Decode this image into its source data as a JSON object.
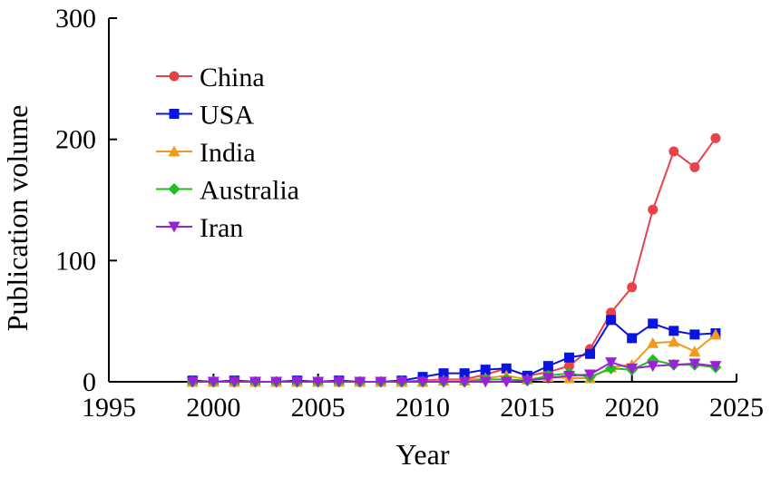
{
  "chart_data": {
    "type": "line",
    "xlabel": "Year",
    "ylabel": "Publication volume",
    "xlim": [
      1995,
      2025
    ],
    "ylim": [
      0,
      300
    ],
    "xticks": [
      1995,
      2000,
      2005,
      2010,
      2015,
      2020,
      2025
    ],
    "yticks": [
      0,
      100,
      200,
      300
    ],
    "grid": false,
    "legend_position": "upper-left",
    "x": [
      1999,
      2000,
      2001,
      2002,
      2003,
      2004,
      2005,
      2006,
      2007,
      2008,
      2009,
      2010,
      2011,
      2012,
      2013,
      2014,
      2015,
      2016,
      2017,
      2018,
      2019,
      2020,
      2021,
      2022,
      2023,
      2024
    ],
    "series": [
      {
        "name": "China",
        "color": "#e8424a",
        "marker": "circle",
        "values": [
          0,
          0,
          0,
          0,
          0,
          0,
          0,
          0,
          0,
          0,
          0,
          1,
          2,
          2,
          6,
          11,
          5,
          8,
          13,
          27,
          57,
          78,
          142,
          190,
          177,
          201
        ]
      },
      {
        "name": "USA",
        "color": "#0a14e0",
        "marker": "square",
        "values": [
          1,
          0,
          1,
          0,
          0,
          1,
          0,
          1,
          0,
          0,
          1,
          4,
          7,
          7,
          10,
          11,
          5,
          13,
          20,
          23,
          51,
          36,
          48,
          42,
          39,
          40
        ]
      },
      {
        "name": "India",
        "color": "#f39a1c",
        "marker": "triangle-up",
        "values": [
          0,
          0,
          0,
          0,
          0,
          0,
          0,
          0,
          0,
          0,
          0,
          0,
          1,
          1,
          3,
          5,
          2,
          4,
          3,
          3,
          12,
          14,
          32,
          33,
          25,
          39
        ]
      },
      {
        "name": "Australia",
        "color": "#1fbf1f",
        "marker": "diamond",
        "values": [
          0,
          0,
          0,
          0,
          0,
          0,
          0,
          0,
          0,
          0,
          0,
          0,
          0,
          0,
          2,
          2,
          1,
          5,
          7,
          4,
          11,
          10,
          18,
          14,
          14,
          12
        ]
      },
      {
        "name": "Iran",
        "color": "#9a22d6",
        "marker": "triangle-down",
        "values": [
          0,
          0,
          0,
          0,
          0,
          0,
          0,
          0,
          0,
          0,
          0,
          0,
          0,
          0,
          0,
          0,
          1,
          3,
          5,
          6,
          16,
          11,
          13,
          14,
          15,
          13
        ]
      }
    ]
  }
}
